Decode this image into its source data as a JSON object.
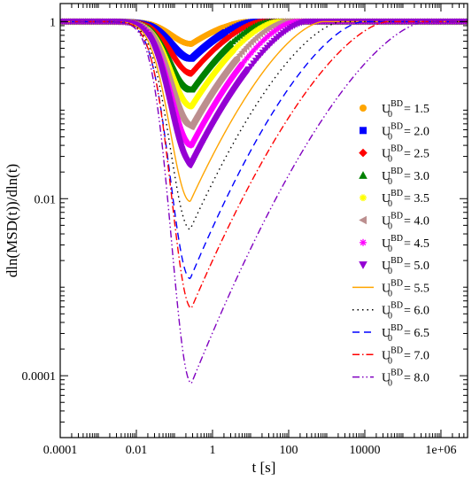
{
  "chart_data": {
    "type": "line",
    "title": "",
    "xlabel": "t [s]",
    "ylabel": "dln(MSD(t))/dln(t)",
    "xscale": "log",
    "yscale": "log",
    "xlim": [
      0.0001,
      5000000
    ],
    "ylim": [
      2e-05,
      1.6
    ],
    "xticks": [
      "0.0001",
      "0.01",
      "1",
      "100",
      "10000",
      "1e+06"
    ],
    "xtick_values": [
      0.0001,
      0.01,
      1,
      100,
      10000,
      1000000
    ],
    "yticks": [
      "0.0001",
      "0.01",
      "1"
    ],
    "ytick_values": [
      0.0001,
      0.01,
      1
    ],
    "legend_position": "right",
    "legend_label_prefix": "U",
    "legend_label_sub": "0",
    "legend_label_sup": "BD",
    "grid": false,
    "series": [
      {
        "name": "= 1.5",
        "style": "circle",
        "color": "#ffa500",
        "min_x": 0.28,
        "min_y": 0.56,
        "mid_x": 1.9,
        "tail_x": 8
      },
      {
        "name": "= 2.0",
        "style": "square",
        "color": "#0000ff",
        "min_x": 0.28,
        "min_y": 0.38,
        "mid_x": 2.2,
        "tail_x": 12
      },
      {
        "name": "= 2.5",
        "style": "diamond",
        "color": "#ff0000",
        "min_x": 0.28,
        "min_y": 0.26,
        "mid_x": 2.6,
        "tail_x": 20
      },
      {
        "name": "= 3.0",
        "style": "triangle",
        "color": "#008000",
        "min_x": 0.28,
        "min_y": 0.17,
        "mid_x": 3.0,
        "tail_x": 30
      },
      {
        "name": "= 3.5",
        "style": "star",
        "color": "#ffff00",
        "min_x": 0.28,
        "min_y": 0.11,
        "mid_x": 3.6,
        "tail_x": 50
      },
      {
        "name": "= 4.0",
        "style": "ltriangle",
        "color": "#bc8f8f",
        "min_x": 0.28,
        "min_y": 0.065,
        "mid_x": 4.5,
        "tail_x": 80
      },
      {
        "name": "= 4.5",
        "style": "asterisk",
        "color": "#ff00ff",
        "min_x": 0.28,
        "min_y": 0.04,
        "mid_x": 6,
        "tail_x": 150
      },
      {
        "name": "= 5.0",
        "style": "dtriangle",
        "color": "#9400d3",
        "min_x": 0.28,
        "min_y": 0.024,
        "mid_x": 9,
        "tail_x": 300
      },
      {
        "name": "= 5.5",
        "style": "solid",
        "color": "#ffa500",
        "min_x": 0.26,
        "min_y": 0.0093,
        "tail_x": 800
      },
      {
        "name": "= 6.0",
        "style": "dotted",
        "color": "#000000",
        "min_x": 0.26,
        "min_y": 0.0045,
        "tail_x": 2500
      },
      {
        "name": "= 6.5",
        "style": "dashed",
        "color": "#0000ff",
        "min_x": 0.26,
        "min_y": 0.00125,
        "tail_x": 9000
      },
      {
        "name": "= 7.0",
        "style": "dashdot",
        "color": "#ff0000",
        "min_x": 0.28,
        "min_y": 0.00058,
        "tail_x": 40000
      },
      {
        "name": "= 8.0",
        "style": "dashdotdot",
        "color": "#8000c0",
        "min_x": 0.28,
        "min_y": 8.2e-05,
        "tail_x": 400000
      }
    ]
  }
}
